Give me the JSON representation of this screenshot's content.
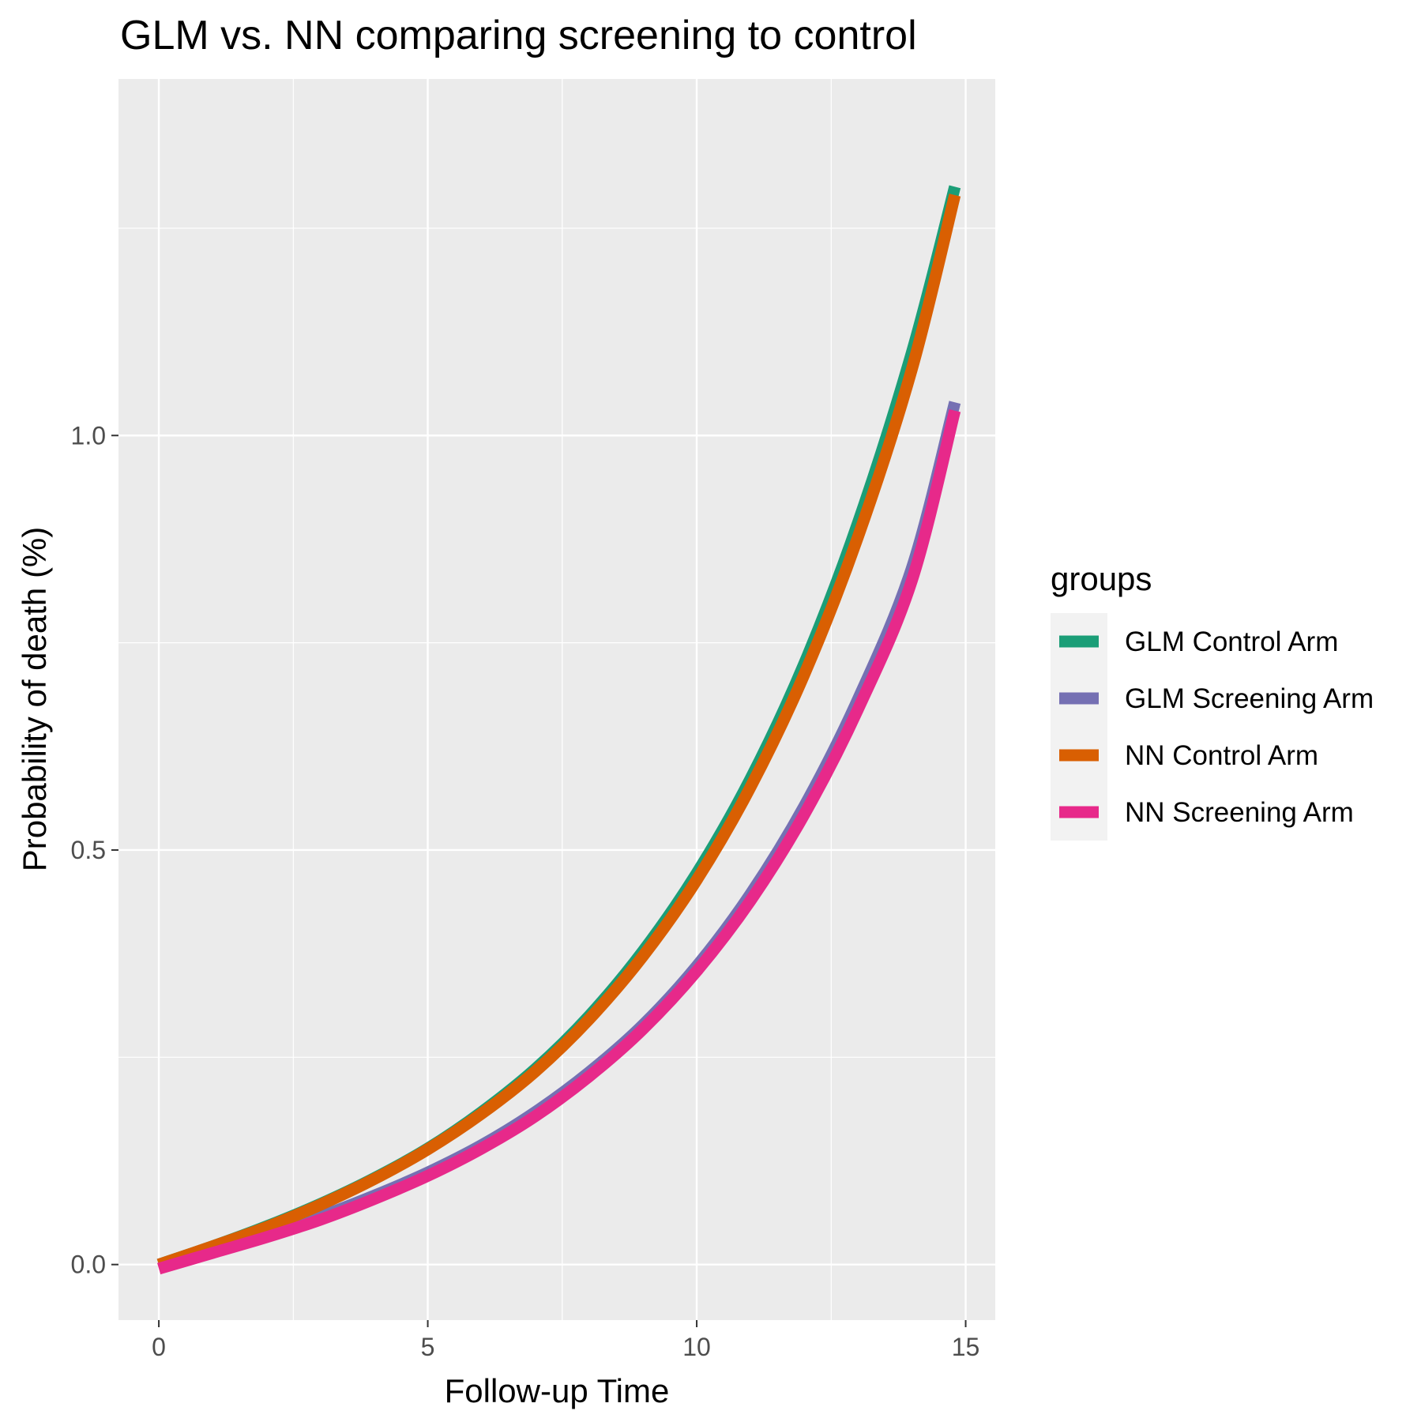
{
  "chart_data": {
    "type": "line",
    "title": "GLM vs. NN comparing screening to control",
    "xlabel": "Follow-up Time",
    "ylabel": "Probability of death (%)",
    "xlim": [
      -0.75,
      15.55
    ],
    "ylim": [
      -0.067,
      1.43
    ],
    "xticks": [
      0,
      5,
      10,
      15
    ],
    "xtick_labels": [
      "0",
      "5",
      "10",
      "15"
    ],
    "yticks": [
      0.0,
      0.5,
      1.0
    ],
    "ytick_labels": [
      "0.0",
      "0.5",
      "1.0"
    ],
    "grid": true,
    "legend": {
      "title": "groups",
      "position": "right"
    },
    "x": [
      0,
      1,
      2,
      3,
      4,
      5,
      6,
      7,
      8,
      9,
      10,
      11,
      12,
      13,
      14,
      14.8
    ],
    "series": [
      {
        "name": "GLM Control Arm",
        "color": "#1b9e77",
        "values": [
          0.0,
          0.022,
          0.046,
          0.073,
          0.104,
          0.14,
          0.184,
          0.236,
          0.3,
          0.378,
          0.472,
          0.586,
          0.725,
          0.895,
          1.1,
          1.3
        ]
      },
      {
        "name": "GLM Screening Arm",
        "color": "#7570b3",
        "values": [
          0.0,
          0.018,
          0.037,
          0.058,
          0.083,
          0.111,
          0.144,
          0.184,
          0.232,
          0.289,
          0.36,
          0.447,
          0.553,
          0.682,
          0.84,
          1.04
        ]
      },
      {
        "name": "NN Control Arm",
        "color": "#d95f02",
        "values": [
          0.0,
          0.022,
          0.045,
          0.072,
          0.103,
          0.139,
          0.182,
          0.233,
          0.296,
          0.372,
          0.464,
          0.576,
          0.712,
          0.878,
          1.08,
          1.29
        ]
      },
      {
        "name": "NN Screening Arm",
        "color": "#e7298a",
        "values": [
          -0.005,
          0.014,
          0.033,
          0.054,
          0.079,
          0.107,
          0.14,
          0.179,
          0.227,
          0.284,
          0.354,
          0.439,
          0.543,
          0.67,
          0.825,
          1.03
        ]
      }
    ]
  }
}
